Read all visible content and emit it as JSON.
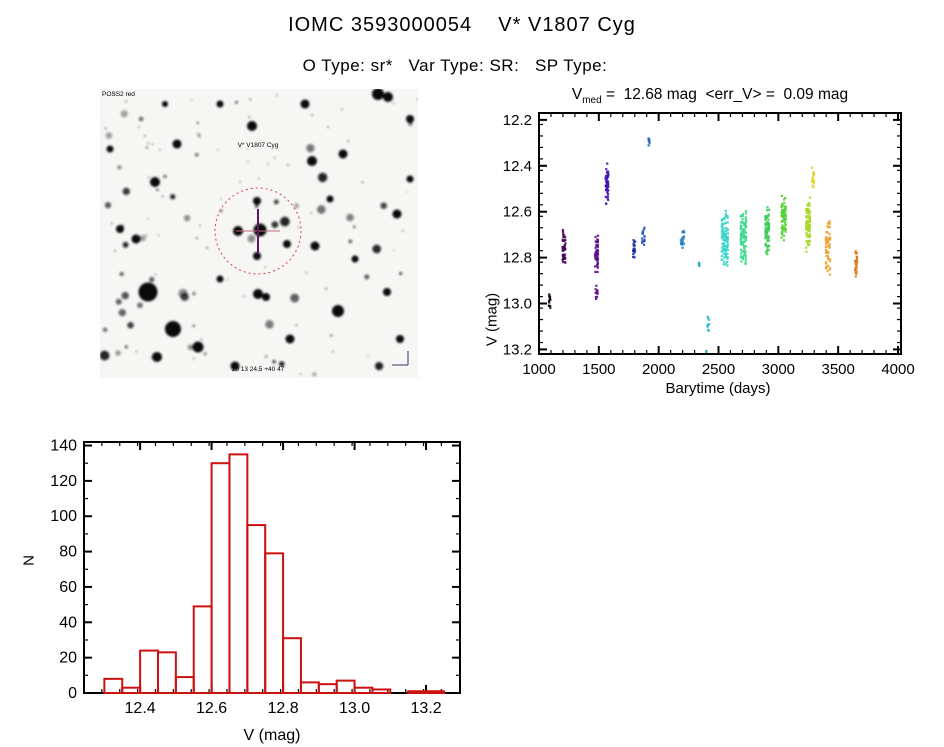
{
  "page": {
    "title": "IOMC 3593000054    V* V1807 Cyg",
    "subtitle": "O Type: sr*   Var Type: SR:   SP Type:"
  },
  "finder": {
    "survey_label": "POSS2 red",
    "target_label": "V* V1807 Cyg",
    "coord_label": "20 13 24.5  +40 47",
    "background": "#f6f6f4",
    "circle_color": "#c94444",
    "cross_color": "#5c1a62",
    "starfield": {
      "seed": 20121,
      "count": 125,
      "featured": [
        [
          288,
          8,
          5
        ],
        [
          278,
          5,
          6
        ],
        [
          152,
          37,
          5
        ],
        [
          77,
          55,
          4.5
        ],
        [
          212,
          72,
          5
        ],
        [
          243,
          65,
          4.5
        ],
        [
          55,
          93,
          5
        ],
        [
          297,
          125,
          4.5
        ],
        [
          157,
          112,
          4
        ],
        [
          138,
          142,
          5
        ],
        [
          160,
          141,
          6.5
        ],
        [
          187,
          155,
          4
        ],
        [
          157,
          167,
          4
        ],
        [
          215,
          157,
          4.5
        ],
        [
          48,
          203,
          9.5
        ],
        [
          73,
          240,
          8
        ],
        [
          158,
          205,
          5
        ],
        [
          166,
          208,
          4
        ],
        [
          238,
          222,
          6
        ],
        [
          98,
          258,
          5.5
        ],
        [
          57,
          268,
          5
        ],
        [
          135,
          277,
          4.5
        ],
        [
          287,
          203,
          4
        ],
        [
          310,
          30,
          4
        ],
        [
          20,
          140,
          4
        ],
        [
          10,
          60,
          3.5
        ],
        [
          230,
          110,
          3.5
        ],
        [
          300,
          250,
          4
        ],
        [
          190,
          250,
          4.5
        ],
        [
          120,
          190,
          3.5
        ],
        [
          36,
          150,
          4.5
        ],
        [
          255,
          170,
          3.5
        ],
        [
          310,
          90,
          3.5
        ],
        [
          205,
          15,
          4.5
        ],
        [
          120,
          15,
          3.5
        ],
        [
          65,
          15,
          3
        ]
      ]
    }
  },
  "chart_data": [
    {
      "type": "scatter",
      "title": {
        "prefix": "V",
        "sub": "med",
        "rest": " =  12.68 mag  <err_V> =  0.09 mag"
      },
      "xlabel": "Barytime (days)",
      "ylabel": "V (mag)",
      "xlim": [
        1000,
        4025
      ],
      "ylim": [
        12.17,
        13.22
      ],
      "y_inverted": true,
      "xticks": [
        1000,
        1500,
        2000,
        2500,
        3000,
        3500,
        4000
      ],
      "yticks": [
        12.2,
        12.4,
        12.6,
        12.8,
        13.0,
        13.2
      ],
      "x_minor_step": 100,
      "y_minor_step": 0.05,
      "clusters": [
        {
          "cols": [
            1086,
            1092
          ],
          "v": [
            12.94,
            13.04
          ],
          "n": 14,
          "color": "#1c0520"
        },
        {
          "cols": [
            1200,
            1210,
            1218
          ],
          "v": [
            12.67,
            12.86
          ],
          "n": 40,
          "color": "#470b55"
        },
        {
          "cols": [
            1472,
            1482,
            1490
          ],
          "v": [
            12.7,
            12.87
          ],
          "n": 50,
          "color": "#64108c"
        },
        {
          "cols": [
            1476,
            1486
          ],
          "v": [
            12.89,
            13.01
          ],
          "n": 14,
          "color": "#64108c"
        },
        {
          "cols": [
            1560,
            1568,
            1576
          ],
          "v": [
            12.36,
            12.57
          ],
          "n": 48,
          "color": "#4714b3"
        },
        {
          "cols": [
            1790,
            1800
          ],
          "v": [
            12.71,
            12.82
          ],
          "n": 20,
          "color": "#1e2f9c"
        },
        {
          "cols": [
            1865,
            1880
          ],
          "v": [
            12.66,
            12.78
          ],
          "n": 16,
          "color": "#2355bd"
        },
        {
          "cols": [
            1918,
            1922
          ],
          "v": [
            12.27,
            12.32
          ],
          "n": 9,
          "color": "#2a64c6"
        },
        {
          "cols": [
            2185,
            2198,
            2210
          ],
          "v": [
            12.66,
            12.77
          ],
          "n": 20,
          "color": "#2a81c6"
        },
        {
          "cols": [
            2340
          ],
          "v": [
            12.82,
            12.84
          ],
          "n": 5,
          "color": "#2fa5d0"
        },
        {
          "cols": [
            2412,
            2420
          ],
          "v": [
            13.04,
            13.14
          ],
          "n": 9,
          "color": "#2bbcca"
        },
        {
          "cols": [
            2530,
            2545,
            2560,
            2575
          ],
          "v": [
            12.58,
            12.87
          ],
          "n": 90,
          "color": "#36d4c9"
        },
        {
          "cols": [
            2690,
            2702,
            2715,
            2728
          ],
          "v": [
            12.57,
            12.84
          ],
          "n": 90,
          "color": "#39da8c"
        },
        {
          "cols": [
            2895,
            2908,
            2920
          ],
          "v": [
            12.57,
            12.79
          ],
          "n": 70,
          "color": "#3fcb58"
        },
        {
          "cols": [
            3030,
            3045,
            3060
          ],
          "v": [
            12.52,
            12.73
          ],
          "n": 70,
          "color": "#55d136"
        },
        {
          "cols": [
            3235,
            3248,
            3262
          ],
          "v": [
            12.52,
            12.79
          ],
          "n": 90,
          "color": "#a9d92b"
        },
        {
          "cols": [
            3285,
            3295
          ],
          "v": [
            12.4,
            12.5
          ],
          "n": 14,
          "color": "#e2d41f"
        },
        {
          "cols": [
            3400,
            3415,
            3430
          ],
          "v": [
            12.61,
            12.89
          ],
          "n": 55,
          "color": "#eea231"
        },
        {
          "cols": [
            3645,
            3655
          ],
          "v": [
            12.76,
            12.89
          ],
          "n": 30,
          "color": "#dd7b20"
        }
      ],
      "outliers": [
        {
          "t": 2395,
          "v": 13.21,
          "color": "#2bbcca"
        }
      ]
    },
    {
      "type": "histogram",
      "xlabel": "V (mag)",
      "ylabel": "N",
      "bin_start": 12.3,
      "bin_width": 0.05,
      "counts": [
        8,
        3,
        24,
        23,
        9,
        49,
        130,
        135,
        95,
        79,
        31,
        6,
        5,
        7,
        3,
        2,
        0,
        1,
        1
      ],
      "xlim": [
        12.243,
        13.295
      ],
      "ylim": [
        0,
        142
      ],
      "xticks": [
        12.4,
        12.6,
        12.8,
        13.0,
        13.2
      ],
      "yticks": [
        0,
        20,
        40,
        60,
        80,
        100,
        120,
        140
      ],
      "x_minor_step": 0.05,
      "y_minor_step": 10,
      "color": "#cc1111"
    }
  ]
}
